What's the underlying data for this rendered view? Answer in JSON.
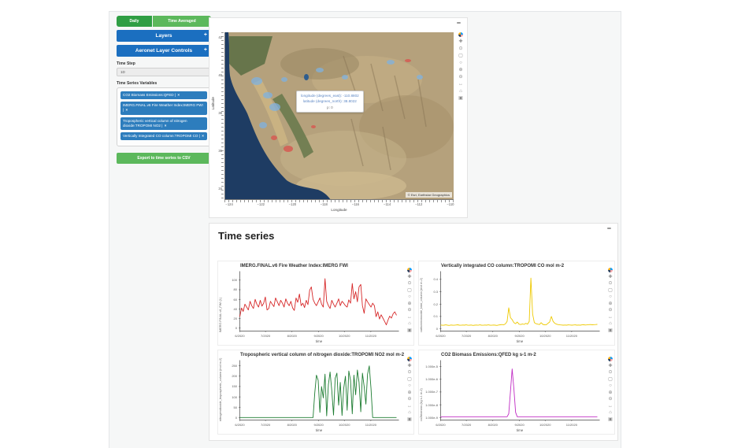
{
  "header_toggle": {
    "daily": "Daily",
    "time_averaged": "Time Averaged"
  },
  "sidebar": {
    "layers": {
      "label": "Layers",
      "expand": "+"
    },
    "aeronet": {
      "label": "Aeronet Layer Controls",
      "expand": "+"
    },
    "time_step": {
      "label": "Time Step",
      "value": "1D"
    },
    "variables_label": "Time Series Variables",
    "variables": [
      {
        "label": "CO2 Biomass Emissions:QFED"
      },
      {
        "label": "IMERG.FINAL.v6 Fire Weather Index:IMERG FWI"
      },
      {
        "label": "Tropospheric vertical column of nitrogen dioxide:TROPOMI NO2"
      },
      {
        "label": "Vertically Integrated CO column:TROPOMI CO"
      }
    ],
    "tag_divider": "|",
    "tag_remove": "×",
    "export_button": "Export to time series to CSV"
  },
  "map_panel": {
    "collapse": "−",
    "xlabel": "Longitude",
    "ylabel": "Latitude",
    "x_ticks": [
      "−124",
      "−122",
      "−120",
      "−118",
      "−116",
      "−114",
      "−112",
      "−110"
    ],
    "y_ticks": [
      "42",
      "40",
      "38",
      "36",
      "34"
    ],
    "tooltip": {
      "longitude": "longitude (degrees_east): -110.8802",
      "latitude": "latitude (degrees_north): 38.8022",
      "p": "p: 0"
    },
    "attribution": "© Esri, Earthstar Geographics"
  },
  "timeseries_panel": {
    "collapse": "−",
    "heading": "Time series"
  },
  "modebar": {
    "icons": [
      {
        "name": "plotly-logo-icon",
        "glyph": ""
      },
      {
        "name": "pan-icon",
        "glyph": "✚"
      },
      {
        "name": "zoom-icon",
        "glyph": "⊙"
      },
      {
        "name": "box-select-icon",
        "glyph": "▢"
      },
      {
        "name": "lasso-icon",
        "glyph": "○"
      },
      {
        "name": "zoom-in-icon",
        "glyph": "⊕"
      },
      {
        "name": "zoom-out-icon",
        "glyph": "⊖"
      },
      {
        "name": "autoscale-icon",
        "glyph": "↔"
      },
      {
        "name": "reset-axes-icon",
        "glyph": "⌂"
      },
      {
        "name": "camera-icon",
        "glyph": "▣"
      }
    ]
  },
  "chart_data": [
    {
      "type": "line",
      "title": "IMERG.FINAL.v6 Fire Weather Index:IMERG FWI",
      "xlabel": "time",
      "ylabel": "IMERG.FINAL.v6_FWI (1)",
      "color": "#d62728",
      "log": false,
      "ylim": [
        -6,
        112
      ],
      "y_ticks": [
        {
          "label": "0",
          "v": 0
        },
        {
          "label": "20",
          "v": 20
        },
        {
          "label": "40",
          "v": 40
        },
        {
          "label": "60",
          "v": 60
        },
        {
          "label": "80",
          "v": 80
        },
        {
          "label": "100",
          "v": 100
        }
      ],
      "x_ticklabels": [
        "6/2020",
        "7/2020",
        "8/2020",
        "9/2020",
        "10/2020",
        "11/2020"
      ],
      "values": [
        24,
        42,
        35,
        50,
        44,
        38,
        56,
        47,
        41,
        60,
        50,
        44,
        58,
        46,
        52,
        65,
        38,
        41,
        56,
        50,
        45,
        63,
        55,
        47,
        58,
        52,
        44,
        61,
        52,
        47,
        56,
        42,
        37,
        63,
        54,
        71,
        47,
        52,
        43,
        58,
        49,
        79,
        86,
        60,
        52,
        47,
        55,
        63,
        50,
        44,
        103,
        56,
        47,
        41,
        58,
        50,
        44,
        52,
        61,
        47,
        56,
        52,
        47,
        44,
        59,
        52,
        93,
        61,
        76,
        55,
        86,
        91,
        47,
        31,
        61,
        55,
        49,
        44,
        52,
        47,
        24,
        34,
        19,
        28,
        21,
        14,
        7,
        17,
        25,
        21,
        30,
        34,
        27
      ]
    },
    {
      "type": "line",
      "title": "Vertically integrated CO column:TROPOMI CO mol m-2",
      "xlabel": "time",
      "ylabel": "carbonmonoxide_total_column (mol m-2)",
      "color": "#eec900",
      "log": false,
      "ylim": [
        -0.018,
        0.44
      ],
      "y_ticks": [
        {
          "label": "0",
          "v": 0
        },
        {
          "label": "0.1",
          "v": 0.1
        },
        {
          "label": "0.2",
          "v": 0.2
        },
        {
          "label": "0.3",
          "v": 0.3
        },
        {
          "label": "0.4",
          "v": 0.4
        }
      ],
      "x_ticklabels": [
        "6/2020",
        "7/2020",
        "8/2020",
        "9/2020",
        "10/2020",
        "11/2020"
      ],
      "values": [
        0.031,
        0.029,
        0.03,
        0.032,
        0.03,
        0.028,
        0.031,
        0.03,
        0.029,
        0.031,
        0.033,
        0.03,
        0.029,
        0.031,
        0.03,
        0.032,
        0.029,
        0.03,
        0.031,
        0.028,
        0.03,
        0.031,
        0.029,
        0.032,
        0.03,
        0.029,
        0.031,
        0.03,
        0.032,
        0.03,
        0.029,
        0.031,
        0.03,
        0.028,
        0.031,
        0.033,
        0.035,
        0.032,
        0.04,
        0.06,
        0.17,
        0.09,
        0.075,
        0.05,
        0.042,
        0.055,
        0.038,
        0.035,
        0.04,
        0.036,
        0.045,
        0.038,
        0.06,
        0.41,
        0.12,
        0.05,
        0.042,
        0.038,
        0.035,
        0.05,
        0.036,
        0.033,
        0.032,
        0.045,
        0.055,
        0.1,
        0.06,
        0.045,
        0.038,
        0.034,
        0.032,
        0.031,
        0.03,
        0.031,
        0.03,
        0.032,
        0.031,
        0.03,
        0.031,
        0.032,
        0.03,
        0.031,
        0.03,
        0.032,
        0.033,
        0.031,
        0.032,
        0.034,
        0.035,
        0.033,
        0.034,
        0.035,
        0.036
      ]
    },
    {
      "type": "line",
      "title": "Tropospheric vertical column of nitrogen dioxide:TROPOMI NO2 mol m-2",
      "xlabel": "time",
      "ylabel": "nitrogendioxide_tropospheric_column (mol m-2)",
      "color": "#1e7d32",
      "log": false,
      "ylim": [
        -12,
        262
      ],
      "y_ticks": [
        {
          "label": "0",
          "v": 0
        },
        {
          "label": "50",
          "v": 50
        },
        {
          "label": "100",
          "v": 100
        },
        {
          "label": "150",
          "v": 150
        },
        {
          "label": "200",
          "v": 200
        },
        {
          "label": "250",
          "v": 250
        }
      ],
      "x_ticklabels": [
        "6/2020",
        "7/2020",
        "8/2020",
        "9/2020",
        "10/2020",
        "11/2020"
      ],
      "values": [
        0,
        0,
        0,
        0,
        0,
        0,
        0,
        0,
        0,
        0,
        0,
        0,
        0,
        0,
        0,
        0,
        0,
        0,
        0,
        0,
        0,
        0,
        0,
        0,
        0,
        0,
        0,
        0,
        0,
        0,
        0,
        0,
        0,
        0,
        0,
        0,
        0,
        0,
        0,
        0,
        0,
        0,
        0,
        0,
        120,
        205,
        180,
        25,
        150,
        95,
        210,
        8,
        160,
        220,
        130,
        12,
        190,
        215,
        60,
        170,
        10,
        140,
        200,
        35,
        225,
        180,
        18,
        205,
        110,
        230,
        170,
        28,
        215,
        150,
        65,
        210,
        250,
        140,
        0,
        0,
        0,
        0,
        0,
        0,
        0,
        0,
        0,
        0,
        0,
        0,
        0,
        0,
        0
      ]
    },
    {
      "type": "line",
      "title": "CO2 Biomass Emissions:QFED kg s-1 m-2",
      "xlabel": "time",
      "ylabel": "co2biomass (kg s-1 m-2)",
      "color": "#c02cc4",
      "log": true,
      "ylim": [
        -9.2,
        -4.75
      ],
      "y_ticks": [
        {
          "label": "1.000e-9",
          "v": -9
        },
        {
          "label": "1.000e-8",
          "v": -8
        },
        {
          "label": "1.000e-7",
          "v": -7
        },
        {
          "label": "1.000e-6",
          "v": -6
        },
        {
          "label": "1.000e-5",
          "v": -5
        }
      ],
      "x_ticklabels": [
        "6/2020",
        "7/2020",
        "8/2020",
        "9/2020",
        "10/2020",
        "11/2020"
      ],
      "values": [
        1.15e-09,
        1.15e-09,
        1.15e-09,
        1.15e-09,
        1.15e-09,
        1.15e-09,
        1.15e-09,
        1.15e-09,
        1.15e-09,
        1.15e-09,
        1.15e-09,
        1.15e-09,
        1.15e-09,
        1.15e-09,
        1.15e-09,
        1.15e-09,
        1.15e-09,
        1.15e-09,
        1.15e-09,
        1.15e-09,
        1.15e-09,
        1.15e-09,
        1.15e-09,
        1.15e-09,
        1.15e-09,
        1.15e-09,
        1.15e-09,
        1.15e-09,
        1.15e-09,
        1.15e-09,
        1.15e-09,
        1.15e-09,
        1.15e-09,
        1.15e-09,
        1.15e-09,
        1.15e-09,
        1.15e-09,
        1.15e-09,
        1.15e-09,
        1.15e-09,
        2e-09,
        1.2e-07,
        6.5e-06,
        1.8e-07,
        2.5e-09,
        1.15e-09,
        1.15e-09,
        1.15e-09,
        1.15e-09,
        1.15e-09,
        1.15e-09,
        1.15e-09,
        1.15e-09,
        1.15e-09,
        1.15e-09,
        1.15e-09,
        1.15e-09,
        1.15e-09,
        1.15e-09,
        1.15e-09,
        1.15e-09,
        1.15e-09,
        1.15e-09,
        1.15e-09,
        1.15e-09,
        1.15e-09,
        1.15e-09,
        1.15e-09,
        1.15e-09,
        1.15e-09,
        1.15e-09,
        1.15e-09,
        1.15e-09,
        1.15e-09,
        1.15e-09,
        1.15e-09,
        1.15e-09,
        1.15e-09,
        1.15e-09,
        1.15e-09,
        1.15e-09,
        1.15e-09,
        1.15e-09,
        1.15e-09,
        1.15e-09,
        1.15e-09,
        1.15e-09,
        1.15e-09,
        1.15e-09,
        1.15e-09,
        1.15e-09,
        1.15e-09,
        1.15e-09
      ]
    }
  ]
}
